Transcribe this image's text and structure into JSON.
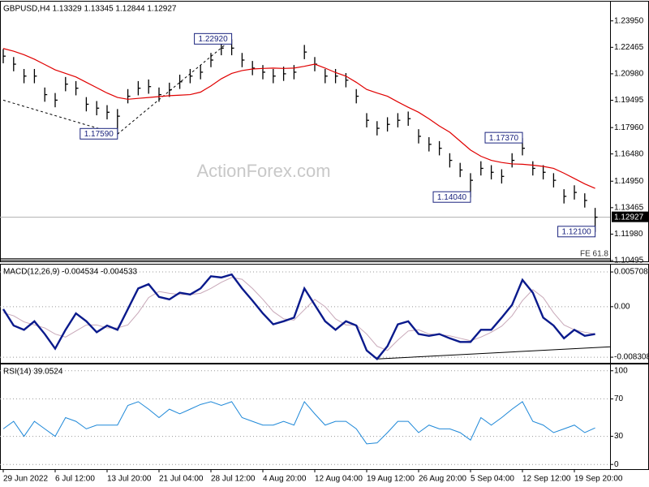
{
  "chart_data": [
    {
      "type": "ohlc",
      "title": "GBPUSD,H4  1.13329 1.13345 1.12844 1.12927",
      "color": "#000000",
      "categories": [
        "29 Jun 2022",
        null,
        null,
        null,
        null,
        "6 Jul 12:00",
        null,
        null,
        null,
        null,
        "13 Jul 20:00",
        null,
        null,
        null,
        null,
        "21 Jul 04:00",
        null,
        null,
        null,
        null,
        "28 Jul 12:00",
        null,
        null,
        null,
        null,
        "4 Aug 20:00",
        null,
        null,
        null,
        null,
        "12 Aug 04:00",
        null,
        null,
        null,
        null,
        "19 Aug 12:00",
        null,
        null,
        null,
        null,
        "26 Aug 20:00",
        null,
        null,
        null,
        null,
        "5 Sep 04:00",
        null,
        null,
        null,
        null,
        "12 Sep 12:00",
        null,
        null,
        null,
        null,
        "19 Sep 20:00",
        null,
        null
      ],
      "high": [
        1.2237,
        1.2192,
        1.2125,
        1.2125,
        1.2021,
        1.199,
        1.208,
        1.2057,
        1.1967,
        1.1945,
        1.1922,
        1.19,
        1.2012,
        1.2057,
        1.2066,
        1.2021,
        1.2048,
        1.2093,
        1.2125,
        1.2147,
        1.2215,
        1.2282,
        1.2292,
        1.2215,
        1.217,
        1.2147,
        1.2125,
        1.2138,
        1.2147,
        1.226,
        1.2192,
        1.2125,
        1.2125,
        1.2102,
        1.2012,
        1.1877,
        1.1832,
        1.1854,
        1.1877,
        1.1886,
        1.1787,
        1.1742,
        1.172,
        1.1652,
        1.1598,
        1.154,
        1.1607,
        1.1585,
        1.1562,
        1.1652,
        1.1737,
        1.1607,
        1.1585,
        1.154,
        1.145,
        1.1472,
        1.1427,
        1.1345
      ],
      "low": [
        1.2157,
        1.2112,
        1.2045,
        1.2045,
        1.1941,
        1.191,
        1.2,
        1.1977,
        1.1887,
        1.1865,
        1.1842,
        1.1759,
        1.1932,
        1.1977,
        1.1986,
        1.1941,
        1.1968,
        1.2013,
        1.2045,
        1.2067,
        1.2135,
        1.2202,
        1.2202,
        1.2135,
        1.209,
        1.2067,
        1.2045,
        1.2058,
        1.2067,
        1.218,
        1.2112,
        1.2045,
        1.2045,
        1.2022,
        1.1932,
        1.1797,
        1.1752,
        1.1774,
        1.1797,
        1.1806,
        1.1707,
        1.1662,
        1.164,
        1.1572,
        1.1518,
        1.1404,
        1.1527,
        1.1505,
        1.1482,
        1.1572,
        1.164,
        1.1527,
        1.1505,
        1.146,
        1.137,
        1.1392,
        1.1347,
        1.121
      ],
      "close": [
        1.2197,
        1.2152,
        1.2085,
        1.2085,
        1.1981,
        1.195,
        1.204,
        1.2017,
        1.1927,
        1.1905,
        1.1882,
        1.186,
        1.1972,
        1.2017,
        1.2026,
        1.1981,
        1.2008,
        1.2053,
        1.2085,
        1.2107,
        1.2175,
        1.2242,
        1.2242,
        1.2175,
        1.213,
        1.2107,
        1.2085,
        1.2098,
        1.2107,
        1.222,
        1.2152,
        1.2085,
        1.2085,
        1.2062,
        1.1972,
        1.1837,
        1.1792,
        1.1814,
        1.1837,
        1.1846,
        1.1747,
        1.1702,
        1.168,
        1.1612,
        1.1558,
        1.15,
        1.1567,
        1.1545,
        1.1522,
        1.1612,
        1.168,
        1.1567,
        1.1545,
        1.15,
        1.141,
        1.1432,
        1.1387,
        1.1293
      ],
      "ma": {
        "color": "#e00000",
        "values": [
          1.224,
          1.2225,
          1.2205,
          1.218,
          1.215,
          1.212,
          1.21,
          1.208,
          1.205,
          1.202,
          1.199,
          1.1965,
          1.1955,
          1.196,
          1.1965,
          1.197,
          1.1975,
          1.1978,
          1.1981,
          1.1995,
          1.203,
          1.207,
          1.21,
          1.2116,
          1.2125,
          1.2128,
          1.213,
          1.2128,
          1.213,
          1.214,
          1.2152,
          1.213,
          1.2105,
          1.2085,
          1.205,
          1.201,
          1.199,
          1.1972,
          1.194,
          1.191,
          1.1882,
          1.1845,
          1.1805,
          1.177,
          1.172,
          1.167,
          1.1635,
          1.1612,
          1.16,
          1.1592,
          1.159,
          1.1585,
          1.1578,
          1.1567,
          1.154,
          1.151,
          1.148,
          1.1455
        ]
      },
      "ylim": [
        1.1045,
        1.2494
      ],
      "yticks": [
        {
          "value": 1.2395,
          "label": "1.23950"
        },
        {
          "value": 1.22465,
          "label": "1.22465"
        },
        {
          "value": 1.2098,
          "label": "1.20980"
        },
        {
          "value": 1.19495,
          "label": "1.19495"
        },
        {
          "value": 1.1796,
          "label": "1.17960"
        },
        {
          "value": 1.1648,
          "label": "1.16480"
        },
        {
          "value": 1.1495,
          "label": "1.14950"
        },
        {
          "value": 1.13465,
          "label": "1.13465"
        },
        {
          "value": 1.1198,
          "label": "1.11980"
        },
        {
          "value": 1.10495,
          "label": "1.10495"
        }
      ],
      "current_price": 1.12927,
      "annotations": [
        {
          "index": 22,
          "value": 1.2292,
          "label": "1.22920"
        },
        {
          "index": 11,
          "value": 1.1759,
          "label": "1.17590"
        },
        {
          "index": 50,
          "value": 1.1737,
          "label": "1.17370"
        },
        {
          "index": 45,
          "value": 1.1404,
          "label": "1.14040"
        },
        {
          "index": 57,
          "value": 1.121,
          "label": "1.12100"
        }
      ],
      "guide": [
        [
          0,
          1.195
        ],
        [
          11,
          1.1759
        ],
        [
          22,
          1.2292
        ]
      ],
      "fe_level": {
        "value": 1.106,
        "label": "FE 61.8"
      },
      "watermark": "ActionForex.com"
    },
    {
      "type": "line",
      "title": "MACD(12,26,9) -0.004534 -0.004533",
      "series": [
        {
          "color": "#0a1a8c",
          "values": [
            -0.0004,
            -0.0031,
            -0.0038,
            -0.0024,
            -0.0045,
            -0.0069,
            -0.0038,
            -0.0011,
            -0.0024,
            -0.0042,
            -0.0031,
            -0.0038,
            -0.0004,
            0.003,
            0.0037,
            0.0016,
            0.0012,
            0.0023,
            0.002,
            0.003,
            0.005,
            0.0048,
            0.0053,
            0.003,
            0.001,
            -0.0011,
            -0.0029,
            -0.0024,
            -0.0018,
            0.003,
            0.0003,
            -0.0024,
            -0.0038,
            -0.0024,
            -0.0031,
            -0.0072,
            -0.0086,
            -0.0065,
            -0.0029,
            -0.0024,
            -0.0045,
            -0.0048,
            -0.0045,
            -0.0052,
            -0.0058,
            -0.0058,
            -0.0038,
            -0.0038,
            -0.0018,
            0.0003,
            0.0044,
            0.0023,
            -0.0018,
            -0.0031,
            -0.0052,
            -0.0038,
            -0.0048,
            -0.0045
          ]
        },
        {
          "color": "#c8a8b8",
          "values": [
            -0.001,
            -0.0015,
            -0.0025,
            -0.003,
            -0.0035,
            -0.0045,
            -0.005,
            -0.004,
            -0.003,
            -0.003,
            -0.0035,
            -0.0035,
            -0.003,
            -0.001,
            0.0015,
            0.0025,
            0.0022,
            0.002,
            0.002,
            0.0022,
            0.003,
            0.004,
            0.0048,
            0.0045,
            0.003,
            0.0012,
            -0.0008,
            -0.002,
            -0.0022,
            -0.0005,
            0.0012,
            0,
            -0.002,
            -0.003,
            -0.003,
            -0.0045,
            -0.0065,
            -0.0072,
            -0.0055,
            -0.004,
            -0.0038,
            -0.0045,
            -0.0046,
            -0.0048,
            -0.0052,
            -0.0056,
            -0.005,
            -0.0042,
            -0.0032,
            -0.0015,
            0.001,
            0.0028,
            0.0015,
            -0.001,
            -0.003,
            -0.0038,
            -0.0042,
            -0.0045
          ]
        }
      ],
      "ylim": [
        -0.00923,
        0.00665
      ],
      "yticks": [
        0.005708,
        {
          "value": 0,
          "label": "0.00"
        },
        -0.008308
      ],
      "grid": true,
      "trendline": [
        [
          36,
          -0.0086
        ],
        [
          58.5,
          -0.0066
        ]
      ]
    },
    {
      "type": "line",
      "title": "RSI(14) 39.0524",
      "series": [
        {
          "color": "#1e88d8",
          "values": [
            38,
            46,
            30,
            46,
            38,
            30,
            50,
            46,
            38,
            42,
            42,
            42,
            63,
            67,
            59,
            50,
            59,
            54,
            59,
            64,
            67,
            63,
            67,
            50,
            46,
            42,
            42,
            46,
            42,
            67,
            54,
            42,
            46,
            46,
            38,
            22,
            23,
            34,
            46,
            46,
            34,
            42,
            38,
            38,
            34,
            26,
            50,
            42,
            50,
            59,
            67,
            46,
            42,
            34,
            38,
            42,
            34,
            39
          ]
        }
      ],
      "ylim": [
        -5,
        105
      ],
      "yticks": [
        100,
        70,
        30,
        0
      ],
      "grid": true
    }
  ]
}
